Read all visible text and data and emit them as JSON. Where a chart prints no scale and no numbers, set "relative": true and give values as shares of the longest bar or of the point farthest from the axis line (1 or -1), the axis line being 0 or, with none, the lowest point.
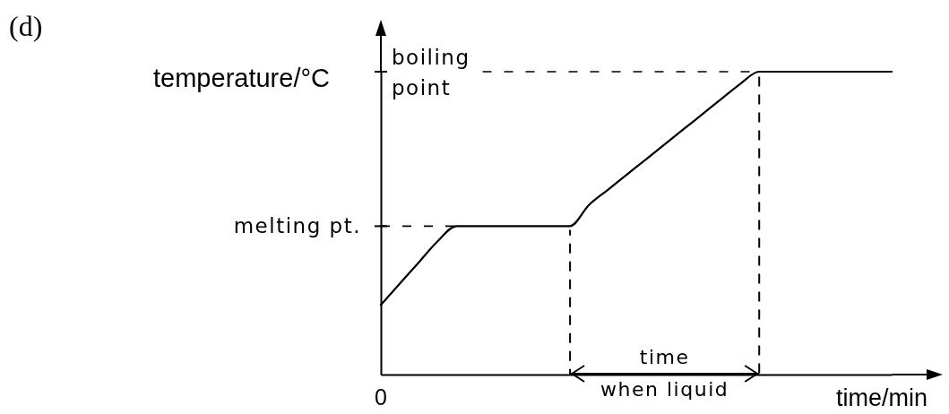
{
  "chart_data": {
    "type": "line",
    "title": "(d)",
    "xlabel": "time/min",
    "ylabel": "temperature/°C",
    "relative": true,
    "categories": [
      null,
      null,
      null,
      null,
      null,
      null,
      null,
      null,
      null,
      null,
      null,
      null,
      null,
      null,
      null,
      null,
      null,
      null,
      null,
      null,
      null,
      null,
      null,
      null,
      null,
      null,
      null,
      null
    ],
    "series": [
      {
        "color": "#000000",
        "values": [
          0.23,
          0.3,
          0.37,
          0.44,
          0.49,
          0.49,
          0.49,
          0.49,
          0.49,
          0.49,
          0.49,
          0.56,
          0.61,
          0.66,
          0.71,
          0.76,
          0.81,
          0.86,
          0.91,
          0.96,
          1,
          1,
          1,
          1,
          1,
          1,
          1,
          1
        ]
      }
    ],
    "line_style": "solid",
    "ref_lines": [
      {
        "axis": "y",
        "value": 0.49,
        "label": "melting pt.",
        "line_style": "dashed"
      },
      {
        "axis": "y",
        "value": 1,
        "label": "boiling point",
        "line_style": "dashed"
      }
    ],
    "annotations": [
      "time when liquid",
      "0"
    ]
  }
}
